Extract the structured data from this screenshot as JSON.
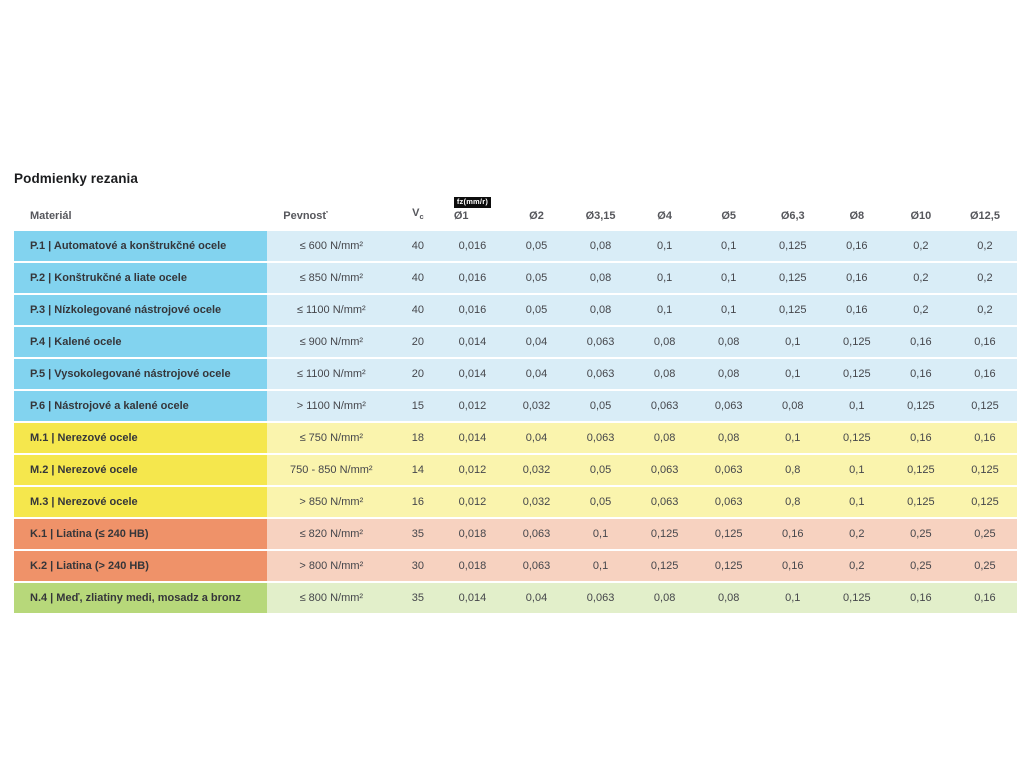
{
  "title": "Podmienky rezania",
  "columns": {
    "material": "Materiál",
    "strength": "Pevnosť",
    "vc_label": "V",
    "vc_sub": "c",
    "fz_badge": "fz(mm/r)",
    "diameters": [
      "Ø1",
      "Ø2",
      "Ø3,15",
      "Ø4",
      "Ø5",
      "Ø6,3",
      "Ø8",
      "Ø10",
      "Ø12,5"
    ]
  },
  "colors": {
    "p_head": "#82d3ef",
    "p_light": "#d9edf7",
    "m_head": "#f5e74d",
    "m_light": "#faf4ad",
    "k_head": "#ef9269",
    "k_light": "#f7d2c0",
    "n_head": "#b7d87a",
    "n_light": "#e2efca"
  },
  "rows": [
    {
      "group": "p",
      "material": "P.1 | Automatové a konštrukčné ocele",
      "strength": "≤ 600 N/mm²",
      "vc": "40",
      "fz": [
        "0,016",
        "0,05",
        "0,08",
        "0,1",
        "0,1",
        "0,125",
        "0,16",
        "0,2",
        "0,2"
      ]
    },
    {
      "group": "p",
      "material": "P.2 | Konštrukčné a liate ocele",
      "strength": "≤ 850 N/mm²",
      "vc": "40",
      "fz": [
        "0,016",
        "0,05",
        "0,08",
        "0,1",
        "0,1",
        "0,125",
        "0,16",
        "0,2",
        "0,2"
      ]
    },
    {
      "group": "p",
      "material": "P.3 | Nízkolegované nástrojové ocele",
      "strength": "≤ 1100 N/mm²",
      "vc": "40",
      "fz": [
        "0,016",
        "0,05",
        "0,08",
        "0,1",
        "0,1",
        "0,125",
        "0,16",
        "0,2",
        "0,2"
      ]
    },
    {
      "group": "p",
      "material": "P.4 | Kalené ocele",
      "strength": "≤ 900 N/mm²",
      "vc": "20",
      "fz": [
        "0,014",
        "0,04",
        "0,063",
        "0,08",
        "0,08",
        "0,1",
        "0,125",
        "0,16",
        "0,16"
      ]
    },
    {
      "group": "p",
      "material": "P.5 | Vysokolegované nástrojové ocele",
      "strength": "≤ 1100 N/mm²",
      "vc": "20",
      "fz": [
        "0,014",
        "0,04",
        "0,063",
        "0,08",
        "0,08",
        "0,1",
        "0,125",
        "0,16",
        "0,16"
      ]
    },
    {
      "group": "p",
      "material": "P.6 | Nástrojové a kalené ocele",
      "strength": "> 1100 N/mm²",
      "vc": "15",
      "fz": [
        "0,012",
        "0,032",
        "0,05",
        "0,063",
        "0,063",
        "0,08",
        "0,1",
        "0,125",
        "0,125"
      ]
    },
    {
      "group": "m",
      "material": "M.1 | Nerezové ocele",
      "strength": "≤ 750 N/mm²",
      "vc": "18",
      "fz": [
        "0,014",
        "0,04",
        "0,063",
        "0,08",
        "0,08",
        "0,1",
        "0,125",
        "0,16",
        "0,16"
      ]
    },
    {
      "group": "m",
      "material": "M.2 | Nerezové ocele",
      "strength": "750 - 850 N/mm²",
      "vc": "14",
      "fz": [
        "0,012",
        "0,032",
        "0,05",
        "0,063",
        "0,063",
        "0,8",
        "0,1",
        "0,125",
        "0,125"
      ]
    },
    {
      "group": "m",
      "material": "M.3 | Nerezové ocele",
      "strength": "> 850 N/mm²",
      "vc": "16",
      "fz": [
        "0,012",
        "0,032",
        "0,05",
        "0,063",
        "0,063",
        "0,8",
        "0,1",
        "0,125",
        "0,125"
      ]
    },
    {
      "group": "k",
      "material": "K.1 | Liatina (≤ 240 HB)",
      "strength": "≤ 820 N/mm²",
      "vc": "35",
      "fz": [
        "0,018",
        "0,063",
        "0,1",
        "0,125",
        "0,125",
        "0,16",
        "0,2",
        "0,25",
        "0,25"
      ]
    },
    {
      "group": "k",
      "material": "K.2 | Liatina (> 240 HB)",
      "strength": "> 800 N/mm²",
      "vc": "30",
      "fz": [
        "0,018",
        "0,063",
        "0,1",
        "0,125",
        "0,125",
        "0,16",
        "0,2",
        "0,25",
        "0,25"
      ]
    },
    {
      "group": "n",
      "material": "N.4 | Meď, zliatiny medi, mosadz a bronz",
      "strength": "≤ 800 N/mm²",
      "vc": "35",
      "fz": [
        "0,014",
        "0,04",
        "0,063",
        "0,08",
        "0,08",
        "0,1",
        "0,125",
        "0,16",
        "0,16"
      ]
    }
  ]
}
